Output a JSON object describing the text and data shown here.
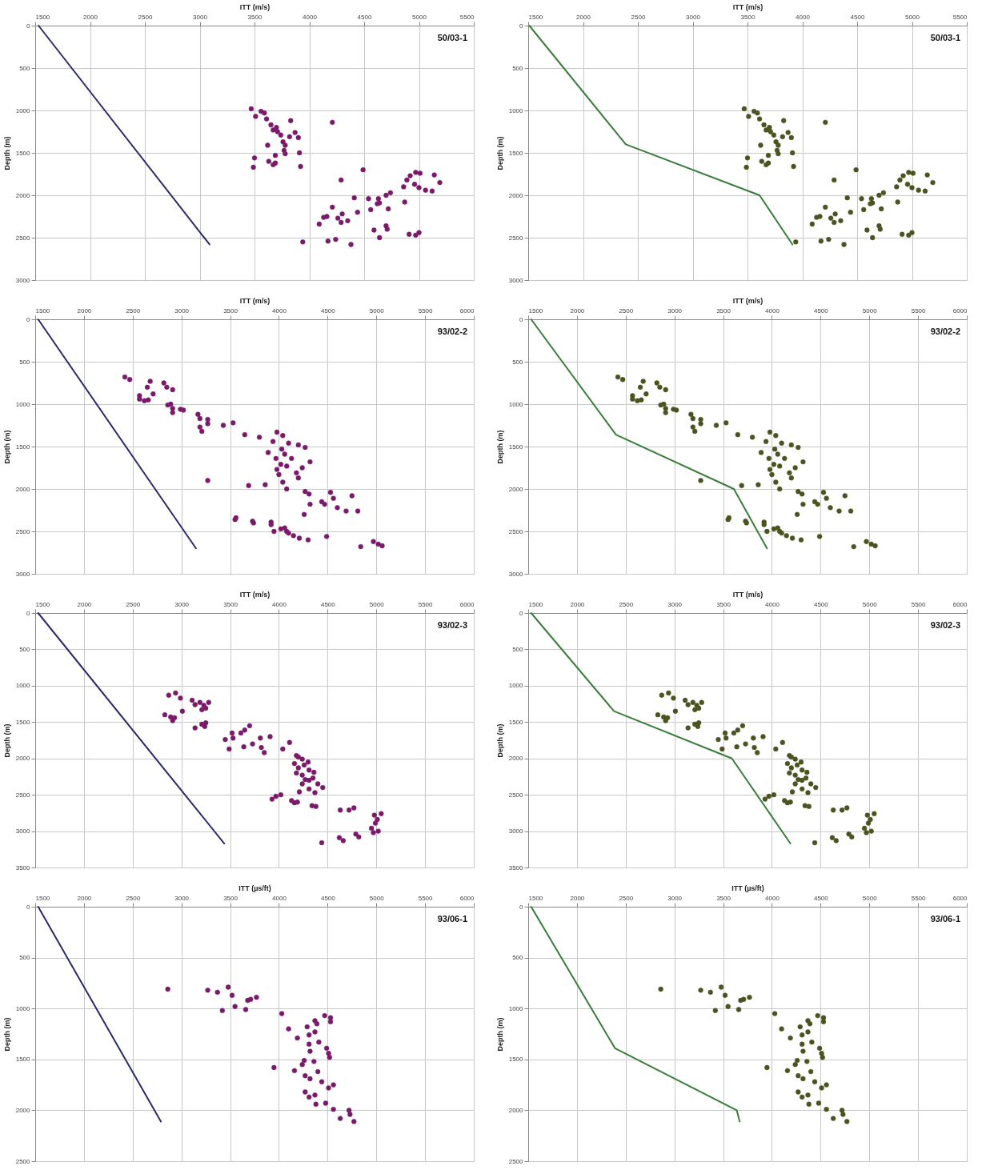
{
  "chart_data": [
    {
      "type": "scatter",
      "xlabel": "ITT (m/s)",
      "ylabel": "Depth (m)",
      "annotations": [
        "50/03-1"
      ],
      "xlim": [
        1500,
        5500
      ],
      "xticks": [
        1500,
        2000,
        2500,
        3000,
        3500,
        4000,
        4500,
        5000,
        5500
      ],
      "ylim": [
        3000,
        0
      ],
      "yticks": [
        0,
        500,
        1000,
        1500,
        2000,
        2500,
        3000
      ],
      "grid": true,
      "series": [
        {
          "type": "scatter",
          "marker": "circle",
          "color": "#7a1a6a",
          "x": [
            3470,
            3510,
            3560,
            3590,
            3610,
            3650,
            3670,
            3700,
            3710,
            3740,
            3830,
            3870,
            3900,
            3820,
            3620,
            3760,
            3780,
            3770,
            3780,
            3910,
            3920,
            3500,
            3490,
            3630,
            3670,
            3690,
            3690,
            4210,
            4490,
            4290,
            4860,
            4890,
            4920,
            4970,
            5010,
            4960,
            5000,
            5060,
            5120,
            5140,
            5190,
            4870,
            4740,
            4700,
            4630,
            4540,
            4410,
            4640,
            4620,
            4560,
            4720,
            4440,
            4210,
            4160,
            4130,
            4260,
            4300,
            4290,
            4350,
            4090,
            4590,
            4700,
            4710,
            4640,
            4910,
            4970,
            5000,
            4170,
            4240,
            4380,
            3940
          ],
          "values": [
            980,
            1070,
            1010,
            1030,
            1100,
            1170,
            1230,
            1200,
            1250,
            1290,
            1120,
            1260,
            1320,
            1310,
            1410,
            1370,
            1410,
            1470,
            1510,
            1500,
            1660,
            1560,
            1670,
            1600,
            1640,
            1620,
            1530,
            1140,
            1700,
            1820,
            1900,
            1820,
            1770,
            1730,
            1740,
            1870,
            1910,
            1940,
            1950,
            1760,
            1850,
            2080,
            1970,
            2000,
            2040,
            2040,
            2030,
            2090,
            2100,
            2170,
            2160,
            2200,
            2140,
            2250,
            2260,
            2270,
            2220,
            2320,
            2300,
            2340,
            2410,
            2360,
            2400,
            2500,
            2460,
            2470,
            2440,
            2540,
            2520,
            2580,
            2550
          ]
        },
        {
          "type": "line",
          "color": "#2b2b6b",
          "x": [
            1530,
            3090
          ],
          "values": [
            0,
            2580
          ]
        }
      ]
    },
    {
      "type": "scatter",
      "xlabel": "ITT (m/s)",
      "ylabel": "Depth (m)",
      "annotations": [
        "50/03-1"
      ],
      "xlim": [
        1500,
        5500
      ],
      "xticks": [
        1500,
        2000,
        2500,
        3000,
        3500,
        4000,
        4500,
        5000,
        5500
      ],
      "ylim": [
        3000,
        0
      ],
      "yticks": [
        0,
        500,
        1000,
        1500,
        2000,
        2500,
        3000
      ],
      "grid": true,
      "series": [
        {
          "type": "scatter",
          "marker": "circle",
          "color": "#4b5320",
          "x": [
            3470,
            3510,
            3560,
            3590,
            3610,
            3650,
            3670,
            3700,
            3710,
            3740,
            3830,
            3870,
            3900,
            3820,
            3620,
            3760,
            3780,
            3770,
            3780,
            3910,
            3920,
            3500,
            3490,
            3630,
            3670,
            3690,
            3690,
            4210,
            4490,
            4290,
            4860,
            4890,
            4920,
            4970,
            5010,
            4960,
            5000,
            5060,
            5120,
            5140,
            5190,
            4870,
            4740,
            4700,
            4630,
            4540,
            4410,
            4640,
            4620,
            4560,
            4720,
            4440,
            4210,
            4160,
            4130,
            4260,
            4300,
            4290,
            4350,
            4090,
            4590,
            4700,
            4710,
            4640,
            4910,
            4970,
            5000,
            4170,
            4240,
            4380,
            3940
          ],
          "values": [
            980,
            1070,
            1010,
            1030,
            1100,
            1170,
            1230,
            1200,
            1250,
            1290,
            1120,
            1260,
            1320,
            1310,
            1410,
            1370,
            1410,
            1470,
            1510,
            1500,
            1660,
            1560,
            1670,
            1600,
            1640,
            1620,
            1530,
            1140,
            1700,
            1820,
            1900,
            1820,
            1770,
            1730,
            1740,
            1870,
            1910,
            1940,
            1950,
            1760,
            1850,
            2080,
            1970,
            2000,
            2040,
            2040,
            2030,
            2090,
            2100,
            2170,
            2160,
            2200,
            2140,
            2250,
            2260,
            2270,
            2220,
            2320,
            2300,
            2340,
            2410,
            2360,
            2400,
            2500,
            2460,
            2470,
            2440,
            2540,
            2520,
            2580,
            2550
          ]
        },
        {
          "type": "line",
          "color": "#3a7d3a",
          "x": [
            1510,
            2390,
            3610,
            3910
          ],
          "values": [
            0,
            1400,
            2000,
            2580
          ]
        }
      ]
    },
    {
      "type": "scatter",
      "xlabel": "ITT (m/s)",
      "ylabel": "Depth (m)",
      "annotations": [
        "93/02-2"
      ],
      "xlim": [
        1500,
        6000
      ],
      "xticks": [
        1500,
        2000,
        2500,
        3000,
        3500,
        4000,
        4500,
        5000,
        5500,
        6000
      ],
      "ylim": [
        3000,
        0
      ],
      "yticks": [
        0,
        500,
        1000,
        1500,
        2000,
        2500,
        3000
      ],
      "grid": true,
      "series": [
        {
          "type": "scatter",
          "marker": "circle",
          "color": "#7a1a6a",
          "x": [
            2420,
            2470,
            2650,
            2680,
            2820,
            2850,
            2910,
            2710,
            2660,
            2570,
            2570,
            2620,
            2860,
            2890,
            2910,
            2910,
            2990,
            3020,
            3170,
            3190,
            3270,
            3270,
            3190,
            3210,
            3430,
            3530,
            3650,
            3800,
            3980,
            4040,
            3940,
            4100,
            4200,
            4270,
            4030,
            3890,
            3970,
            4060,
            4130,
            4020,
            4080,
            4320,
            4240,
            3980,
            4000,
            4180,
            4200,
            4040,
            4080,
            3860,
            3690,
            3270,
            4270,
            4310,
            4530,
            4560,
            4750,
            4440,
            4470,
            4320,
            4600,
            4690,
            4810,
            4260,
            3560,
            3550,
            3730,
            3740,
            3920,
            3920,
            3950,
            4020,
            4060,
            4080,
            4100,
            4150,
            4210,
            4300,
            4490,
            4840,
            4970,
            5020,
            5060
          ],
          "values": [
            680,
            710,
            800,
            730,
            750,
            800,
            830,
            880,
            950,
            900,
            940,
            960,
            1010,
            1000,
            1050,
            1100,
            1060,
            1070,
            1120,
            1170,
            1180,
            1230,
            1270,
            1320,
            1250,
            1220,
            1360,
            1390,
            1330,
            1370,
            1440,
            1460,
            1480,
            1510,
            1530,
            1570,
            1640,
            1590,
            1640,
            1710,
            1730,
            1680,
            1750,
            1770,
            1830,
            1810,
            1870,
            1920,
            2000,
            1950,
            1960,
            1900,
            2030,
            2060,
            2040,
            2110,
            2080,
            2150,
            2180,
            2180,
            2220,
            2260,
            2260,
            2300,
            2340,
            2360,
            2380,
            2400,
            2390,
            2420,
            2500,
            2470,
            2460,
            2500,
            2520,
            2550,
            2580,
            2600,
            2560,
            2680,
            2620,
            2650,
            2670
          ]
        },
        {
          "type": "line",
          "color": "#2b2b6b",
          "x": [
            1530,
            3150
          ],
          "values": [
            0,
            2700
          ]
        }
      ]
    },
    {
      "type": "scatter",
      "xlabel": "ITT (m/s)",
      "ylabel": "Depth (m)",
      "annotations": [
        "93/02-2"
      ],
      "xlim": [
        1500,
        6000
      ],
      "xticks": [
        1500,
        2000,
        2500,
        3000,
        3500,
        4000,
        4500,
        5000,
        5500,
        6000
      ],
      "ylim": [
        3000,
        0
      ],
      "yticks": [
        0,
        500,
        1000,
        1500,
        2000,
        2500,
        3000
      ],
      "grid": true,
      "series": [
        {
          "type": "scatter",
          "marker": "circle",
          "color": "#4b5320",
          "x": [
            2420,
            2470,
            2650,
            2680,
            2820,
            2850,
            2910,
            2710,
            2660,
            2570,
            2570,
            2620,
            2860,
            2890,
            2910,
            2910,
            2990,
            3020,
            3170,
            3190,
            3270,
            3270,
            3190,
            3210,
            3430,
            3530,
            3650,
            3800,
            3980,
            4040,
            3940,
            4100,
            4200,
            4270,
            4030,
            3890,
            3970,
            4060,
            4130,
            4020,
            4080,
            4320,
            4240,
            3980,
            4000,
            4180,
            4200,
            4040,
            4080,
            3860,
            3690,
            3270,
            4270,
            4310,
            4530,
            4560,
            4750,
            4440,
            4470,
            4320,
            4600,
            4690,
            4810,
            4260,
            3560,
            3550,
            3730,
            3740,
            3920,
            3920,
            3950,
            4020,
            4060,
            4080,
            4100,
            4150,
            4210,
            4300,
            4490,
            4840,
            4970,
            5020,
            5060
          ],
          "values": [
            680,
            710,
            800,
            730,
            750,
            800,
            830,
            880,
            950,
            900,
            940,
            960,
            1010,
            1000,
            1050,
            1100,
            1060,
            1070,
            1120,
            1170,
            1180,
            1230,
            1270,
            1320,
            1250,
            1220,
            1360,
            1390,
            1330,
            1370,
            1440,
            1460,
            1480,
            1510,
            1530,
            1570,
            1640,
            1590,
            1640,
            1710,
            1730,
            1680,
            1750,
            1770,
            1830,
            1810,
            1870,
            1920,
            2000,
            1950,
            1960,
            1900,
            2030,
            2060,
            2040,
            2110,
            2080,
            2150,
            2180,
            2180,
            2220,
            2260,
            2260,
            2300,
            2340,
            2360,
            2380,
            2400,
            2390,
            2420,
            2500,
            2470,
            2460,
            2500,
            2520,
            2550,
            2580,
            2600,
            2560,
            2680,
            2620,
            2650,
            2670
          ]
        },
        {
          "type": "line",
          "color": "#3a7d3a",
          "x": [
            1530,
            2400,
            3610,
            3950
          ],
          "values": [
            0,
            1360,
            2000,
            2700
          ]
        }
      ]
    },
    {
      "type": "scatter",
      "xlabel": "ITT (m/s)",
      "ylabel": "Depth (m)",
      "annotations": [
        "93/02-3"
      ],
      "xlim": [
        1500,
        6000
      ],
      "xticks": [
        1500,
        2000,
        2500,
        3000,
        3500,
        4000,
        4500,
        5000,
        5500,
        6000
      ],
      "ylim": [
        3500,
        0
      ],
      "yticks": [
        0,
        500,
        1000,
        1500,
        2000,
        2500,
        3000,
        3500
      ],
      "grid": true,
      "series": [
        {
          "type": "scatter",
          "marker": "circle",
          "color": "#7a1a6a",
          "x": [
            2870,
            2940,
            2990,
            3010,
            3110,
            3140,
            3190,
            3230,
            3210,
            3280,
            3250,
            2830,
            2890,
            2910,
            2930,
            3140,
            3210,
            3240,
            3250,
            3450,
            3490,
            3520,
            3530,
            3610,
            3650,
            3700,
            3640,
            3730,
            3810,
            3820,
            3850,
            3910,
            4040,
            4110,
            4180,
            4200,
            4240,
            4300,
            4160,
            4200,
            4260,
            4310,
            4360,
            4180,
            4240,
            4270,
            4310,
            4350,
            4400,
            4450,
            4240,
            4210,
            4310,
            4370,
            3930,
            3970,
            4020,
            4130,
            4160,
            4190,
            4340,
            4380,
            4630,
            4720,
            4770,
            4980,
            5010,
            5050,
            4990,
            4950,
            5020,
            4970,
            4440,
            4620,
            4660,
            4790,
            4820
          ],
          "values": [
            1130,
            1100,
            1170,
            1350,
            1200,
            1260,
            1230,
            1270,
            1330,
            1230,
            1310,
            1400,
            1430,
            1480,
            1440,
            1580,
            1530,
            1560,
            1510,
            1740,
            1870,
            1650,
            1720,
            1650,
            1610,
            1550,
            1840,
            1800,
            1720,
            1850,
            1920,
            1700,
            1870,
            1780,
            1960,
            1980,
            2010,
            2050,
            2070,
            2130,
            2090,
            2160,
            2190,
            2200,
            2230,
            2290,
            2300,
            2270,
            2350,
            2400,
            2350,
            2460,
            2420,
            2470,
            2560,
            2520,
            2500,
            2580,
            2610,
            2600,
            2650,
            2660,
            2710,
            2710,
            2680,
            2780,
            2840,
            2760,
            2890,
            2960,
            3000,
            3020,
            3160,
            3090,
            3130,
            3040,
            3080
          ]
        },
        {
          "type": "line",
          "color": "#2b2b6b",
          "x": [
            1530,
            3440
          ],
          "values": [
            0,
            3170
          ]
        }
      ]
    },
    {
      "type": "scatter",
      "xlabel": "ITT (m/s)",
      "ylabel": "Depth (m)",
      "annotations": [
        "93/02-3"
      ],
      "xlim": [
        1500,
        6000
      ],
      "xticks": [
        1500,
        2000,
        2500,
        3000,
        3500,
        4000,
        4500,
        5000,
        5500,
        6000
      ],
      "ylim": [
        3500,
        0
      ],
      "yticks": [
        0,
        500,
        1000,
        1500,
        2000,
        2500,
        3000,
        3500
      ],
      "grid": true,
      "series": [
        {
          "type": "scatter",
          "marker": "circle",
          "color": "#4b5320",
          "x": [
            2870,
            2940,
            2990,
            3010,
            3110,
            3140,
            3190,
            3230,
            3210,
            3280,
            3250,
            2830,
            2890,
            2910,
            2930,
            3140,
            3210,
            3240,
            3250,
            3450,
            3490,
            3520,
            3530,
            3610,
            3650,
            3700,
            3640,
            3730,
            3810,
            3820,
            3850,
            3910,
            4040,
            4110,
            4180,
            4200,
            4240,
            4300,
            4160,
            4200,
            4260,
            4310,
            4360,
            4180,
            4240,
            4270,
            4310,
            4350,
            4400,
            4450,
            4240,
            4210,
            4310,
            4370,
            3930,
            3970,
            4020,
            4130,
            4160,
            4190,
            4340,
            4380,
            4630,
            4720,
            4770,
            4980,
            5010,
            5050,
            4990,
            4950,
            5020,
            4970,
            4440,
            4620,
            4660,
            4790,
            4820
          ],
          "values": [
            1130,
            1100,
            1170,
            1350,
            1200,
            1260,
            1230,
            1270,
            1330,
            1230,
            1310,
            1400,
            1430,
            1480,
            1440,
            1580,
            1530,
            1560,
            1510,
            1740,
            1870,
            1650,
            1720,
            1650,
            1610,
            1550,
            1840,
            1800,
            1720,
            1850,
            1920,
            1700,
            1870,
            1780,
            1960,
            1980,
            2010,
            2050,
            2070,
            2130,
            2090,
            2160,
            2190,
            2200,
            2230,
            2290,
            2300,
            2270,
            2350,
            2400,
            2350,
            2460,
            2420,
            2470,
            2560,
            2520,
            2500,
            2580,
            2610,
            2600,
            2650,
            2660,
            2710,
            2710,
            2680,
            2780,
            2840,
            2760,
            2890,
            2960,
            3000,
            3020,
            3160,
            3090,
            3130,
            3040,
            3080
          ]
        },
        {
          "type": "line",
          "color": "#3a7d3a",
          "x": [
            1530,
            2380,
            3590,
            4190
          ],
          "values": [
            0,
            1350,
            2000,
            3170
          ]
        }
      ]
    },
    {
      "type": "scatter",
      "xlabel": "ITT (µs/ft)",
      "ylabel": "Depth (m)",
      "annotations": [
        "93/06-1"
      ],
      "xlim": [
        1500,
        6000
      ],
      "xticks": [
        1500,
        2000,
        2500,
        3000,
        3500,
        4000,
        4500,
        5000,
        5500,
        6000
      ],
      "ylim": [
        2500,
        0
      ],
      "yticks": [
        0,
        500,
        1000,
        1500,
        2000,
        2500
      ],
      "grid": true,
      "series": [
        {
          "type": "scatter",
          "marker": "circle",
          "color": "#7a1a6a",
          "x": [
            2860,
            3270,
            3370,
            3480,
            3520,
            3420,
            3550,
            3660,
            3680,
            3710,
            3770,
            4030,
            4100,
            4190,
            3950,
            4160,
            4370,
            4390,
            4290,
            4470,
            4530,
            4530,
            4370,
            4310,
            4410,
            4310,
            4490,
            4510,
            4520,
            4320,
            4260,
            4240,
            4360,
            4400,
            4270,
            4320,
            4440,
            4510,
            4560,
            4270,
            4310,
            4370,
            4380,
            4480,
            4560,
            4630,
            4720,
            4730,
            4770
          ],
          "values": [
            810,
            820,
            840,
            790,
            870,
            1020,
            980,
            1010,
            920,
            910,
            890,
            1050,
            1200,
            1290,
            1580,
            1610,
            1120,
            1150,
            1180,
            1070,
            1090,
            1130,
            1230,
            1260,
            1330,
            1350,
            1390,
            1440,
            1480,
            1420,
            1510,
            1550,
            1520,
            1620,
            1660,
            1690,
            1720,
            1780,
            1750,
            1820,
            1870,
            1850,
            1940,
            1930,
            1990,
            2080,
            2000,
            2040,
            2110
          ]
        },
        {
          "type": "line",
          "color": "#2b2b6b",
          "x": [
            1530,
            2790
          ],
          "values": [
            0,
            2110
          ]
        }
      ]
    },
    {
      "type": "scatter",
      "xlabel": "ITT (µs/ft)",
      "ylabel": "Depth (m)",
      "annotations": [
        "93/06-1"
      ],
      "xlim": [
        1500,
        6000
      ],
      "xticks": [
        1500,
        2000,
        2500,
        3000,
        3500,
        4000,
        4500,
        5000,
        5500,
        6000
      ],
      "ylim": [
        2500,
        0
      ],
      "yticks": [
        0,
        500,
        1000,
        1500,
        2000,
        2500
      ],
      "grid": true,
      "series": [
        {
          "type": "scatter",
          "marker": "circle",
          "color": "#4b5320",
          "x": [
            2860,
            3270,
            3370,
            3480,
            3520,
            3420,
            3550,
            3660,
            3680,
            3710,
            3770,
            4030,
            4100,
            4190,
            3950,
            4160,
            4370,
            4390,
            4290,
            4470,
            4530,
            4530,
            4370,
            4310,
            4410,
            4310,
            4490,
            4510,
            4520,
            4320,
            4260,
            4240,
            4360,
            4400,
            4270,
            4320,
            4440,
            4510,
            4560,
            4270,
            4310,
            4370,
            4380,
            4480,
            4560,
            4630,
            4720,
            4730,
            4770
          ],
          "values": [
            810,
            820,
            840,
            790,
            870,
            1020,
            980,
            1010,
            920,
            910,
            890,
            1050,
            1200,
            1290,
            1580,
            1610,
            1120,
            1150,
            1180,
            1070,
            1090,
            1130,
            1230,
            1260,
            1330,
            1350,
            1390,
            1440,
            1480,
            1420,
            1510,
            1550,
            1520,
            1620,
            1660,
            1690,
            1720,
            1780,
            1750,
            1820,
            1870,
            1850,
            1940,
            1930,
            1990,
            2080,
            2000,
            2040,
            2110
          ]
        },
        {
          "type": "line",
          "color": "#3a7d3a",
          "x": [
            1530,
            2390,
            3640,
            3670
          ],
          "values": [
            0,
            1390,
            2000,
            2110
          ]
        }
      ]
    }
  ]
}
